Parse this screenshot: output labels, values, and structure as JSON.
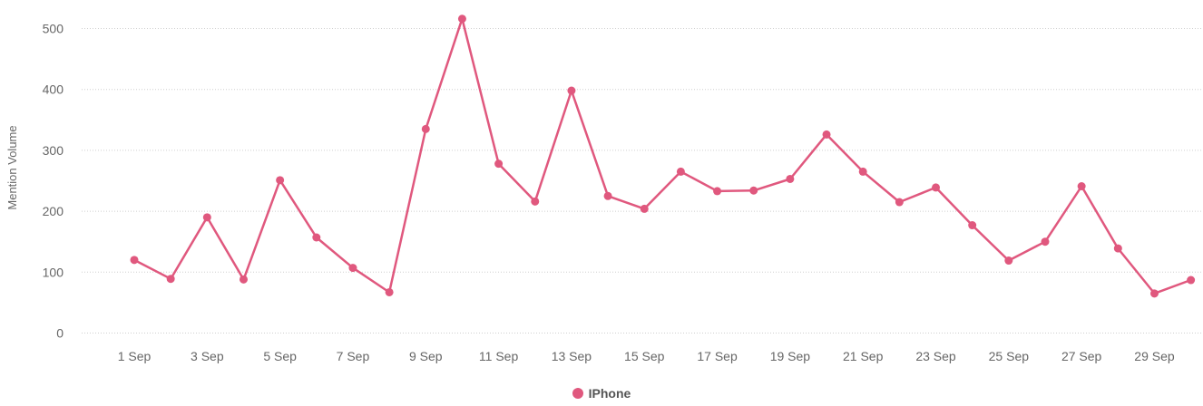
{
  "chart_data": {
    "type": "line",
    "title": "",
    "xlabel": "",
    "ylabel": "Mention Volume",
    "ylim": [
      0,
      500
    ],
    "yticks": [
      0,
      100,
      200,
      300,
      400,
      500
    ],
    "grid": true,
    "legend_position": "bottom-center",
    "x": [
      "1 Sep",
      "2 Sep",
      "3 Sep",
      "4 Sep",
      "5 Sep",
      "6 Sep",
      "7 Sep",
      "8 Sep",
      "9 Sep",
      "10 Sep",
      "11 Sep",
      "12 Sep",
      "13 Sep",
      "14 Sep",
      "15 Sep",
      "16 Sep",
      "17 Sep",
      "18 Sep",
      "19 Sep",
      "20 Sep",
      "21 Sep",
      "22 Sep",
      "23 Sep",
      "24 Sep",
      "25 Sep",
      "26 Sep",
      "27 Sep",
      "28 Sep",
      "29 Sep",
      "30 Sep"
    ],
    "xtick_labels": [
      "1 Sep",
      "3 Sep",
      "5 Sep",
      "7 Sep",
      "9 Sep",
      "11 Sep",
      "13 Sep",
      "15 Sep",
      "17 Sep",
      "19 Sep",
      "21 Sep",
      "23 Sep",
      "25 Sep",
      "27 Sep",
      "29 Sep"
    ],
    "series": [
      {
        "name": "IPhone",
        "color": "#e0587e",
        "values": [
          120,
          89,
          190,
          88,
          251,
          157,
          107,
          67,
          335,
          516,
          278,
          216,
          398,
          225,
          204,
          265,
          233,
          234,
          253,
          326,
          265,
          215,
          239,
          177,
          119,
          150,
          241,
          139,
          65,
          87
        ]
      }
    ]
  }
}
